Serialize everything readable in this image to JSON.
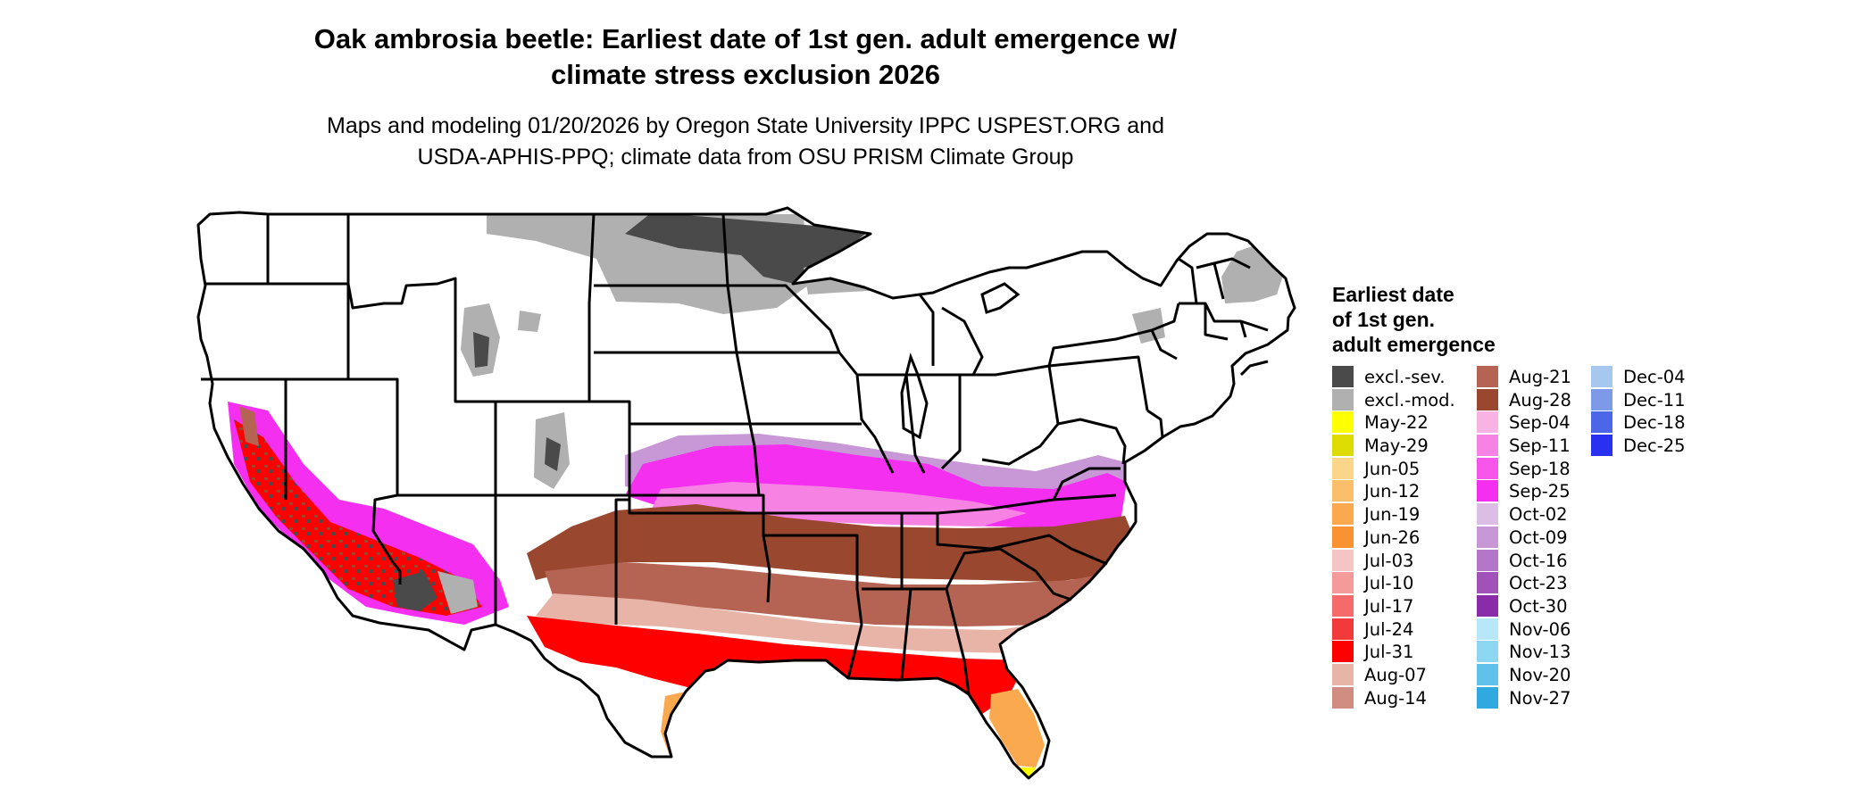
{
  "title_lines": [
    "Oak ambrosia beetle: Earliest date of 1st gen. adult emergence w/",
    "climate stress exclusion 2026"
  ],
  "subtitle_lines": [
    "Maps and modeling 01/20/2026 by Oregon State University IPPC USPEST.ORG and",
    "USDA-APHIS-PPQ; climate data from OSU PRISM Climate Group"
  ],
  "map": {
    "region": "Contiguous United States",
    "boundaries": "state outlines",
    "no_data_color": "#ffffff"
  },
  "legend": {
    "title_lines": [
      "Earliest date",
      "of 1st gen.",
      "adult emergence"
    ],
    "columns": [
      [
        {
          "label": "excl.-sev.",
          "color": "#4a4a4a"
        },
        {
          "label": "excl.-mod.",
          "color": "#b0b0b0"
        },
        {
          "label": "May-22",
          "color": "#ffff00"
        },
        {
          "label": "May-29",
          "color": "#dcdc00"
        },
        {
          "label": "Jun-05",
          "color": "#fbd58a"
        },
        {
          "label": "Jun-12",
          "color": "#fbbf6c"
        },
        {
          "label": "Jun-19",
          "color": "#faa94f"
        },
        {
          "label": "Jun-26",
          "color": "#f89232"
        },
        {
          "label": "Jul-03",
          "color": "#f5c4c4"
        },
        {
          "label": "Jul-10",
          "color": "#f59a9a"
        },
        {
          "label": "Jul-17",
          "color": "#f56a6a"
        },
        {
          "label": "Jul-24",
          "color": "#f23a3a"
        },
        {
          "label": "Jul-31",
          "color": "#ff0000"
        },
        {
          "label": "Aug-07",
          "color": "#e8b4a8"
        },
        {
          "label": "Aug-14",
          "color": "#cf8c80"
        }
      ],
      [
        {
          "label": "Aug-21",
          "color": "#b56454"
        },
        {
          "label": "Aug-28",
          "color": "#99472f"
        },
        {
          "label": "Sep-04",
          "color": "#f7b3e3"
        },
        {
          "label": "Sep-11",
          "color": "#f683e4"
        },
        {
          "label": "Sep-18",
          "color": "#f657ea"
        },
        {
          "label": "Sep-25",
          "color": "#f52ff0"
        },
        {
          "label": "Oct-02",
          "color": "#dcbde4"
        },
        {
          "label": "Oct-09",
          "color": "#c898d6"
        },
        {
          "label": "Oct-16",
          "color": "#b476c8"
        },
        {
          "label": "Oct-23",
          "color": "#a052b8"
        },
        {
          "label": "Oct-30",
          "color": "#8a2ca8"
        },
        {
          "label": "Nov-06",
          "color": "#b8e8f8"
        },
        {
          "label": "Nov-13",
          "color": "#8cd6f2"
        },
        {
          "label": "Nov-20",
          "color": "#60c2ea"
        },
        {
          "label": "Nov-27",
          "color": "#30a8e0"
        }
      ],
      [
        {
          "label": "Dec-04",
          "color": "#a6c8ee"
        },
        {
          "label": "Dec-11",
          "color": "#7c9ae8"
        },
        {
          "label": "Dec-18",
          "color": "#4c66e8"
        },
        {
          "label": "Dec-25",
          "color": "#2a30f0"
        }
      ]
    ]
  }
}
